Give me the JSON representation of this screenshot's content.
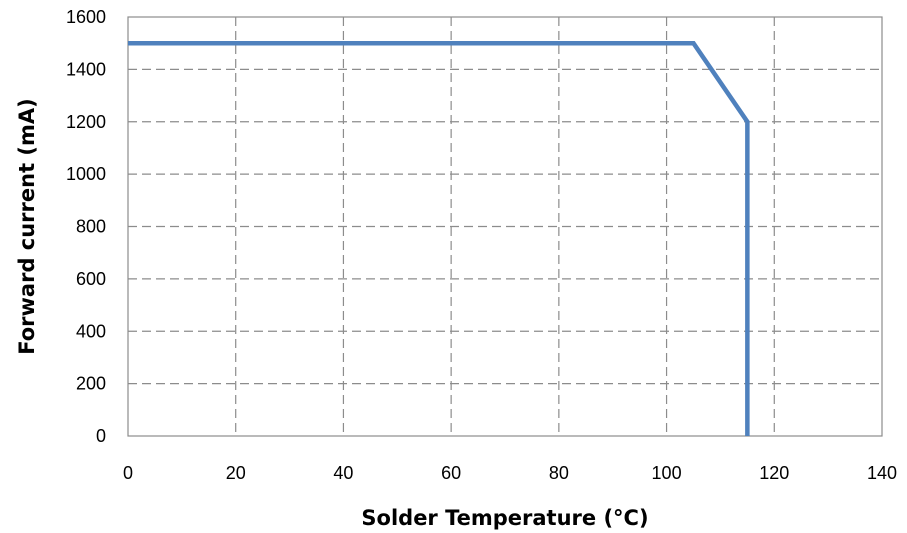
{
  "chart_data": {
    "type": "line",
    "title": "",
    "xlabel": "Solder Temperature (°C)",
    "ylabel": "Forward current (mA)",
    "xlim": [
      0,
      140
    ],
    "ylim": [
      0,
      1600
    ],
    "xticks": [
      0,
      20,
      40,
      60,
      80,
      100,
      120,
      140
    ],
    "yticks": [
      0,
      200,
      400,
      600,
      800,
      1000,
      1200,
      1400,
      1600
    ],
    "grid": true,
    "grid_style": "dashed",
    "legend": "none",
    "series": [
      {
        "color": "#4f81bd",
        "x": [
          0,
          105,
          115,
          115
        ],
        "y": [
          1500,
          1500,
          1200,
          0
        ]
      }
    ]
  }
}
